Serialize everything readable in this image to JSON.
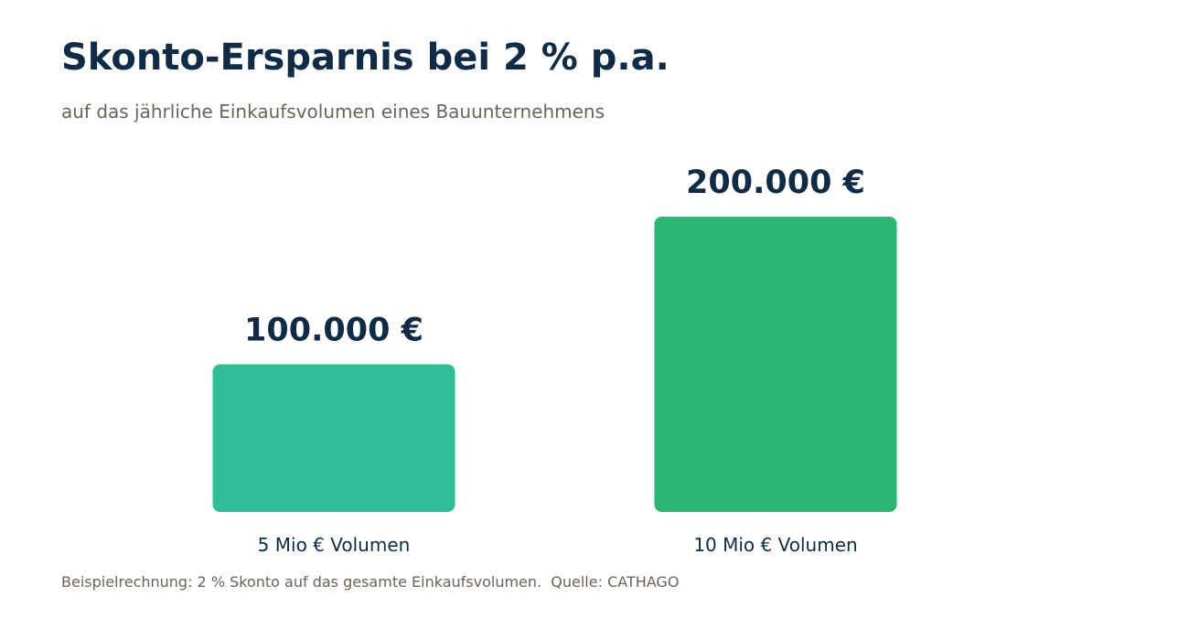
{
  "header": {
    "title": "Skonto-Ersparnis bei 2 % p.a.",
    "subtitle": "auf das jährliche Einkaufsvolumen eines Bauunternehmens"
  },
  "footer": {
    "note": "Beispielrechnung: 2 % Skonto auf das gesamte Einkaufsvolumen.  Quelle: CATHAGO"
  },
  "chart_data": {
    "type": "bar",
    "title": "Skonto-Ersparnis bei 2 % p.a.",
    "subtitle": "auf das jährliche Einkaufsvolumen eines Bauunternehmens",
    "categories": [
      "5 Mio € Volumen",
      "10 Mio € Volumen"
    ],
    "values": [
      100000,
      200000
    ],
    "value_labels": [
      "100.000 €",
      "200.000 €"
    ],
    "colors": [
      "#2ebf99",
      "#2bb673"
    ],
    "xlabel": "",
    "ylabel": "",
    "ylim": [
      0,
      200000
    ],
    "grid": false,
    "legend": "none"
  }
}
